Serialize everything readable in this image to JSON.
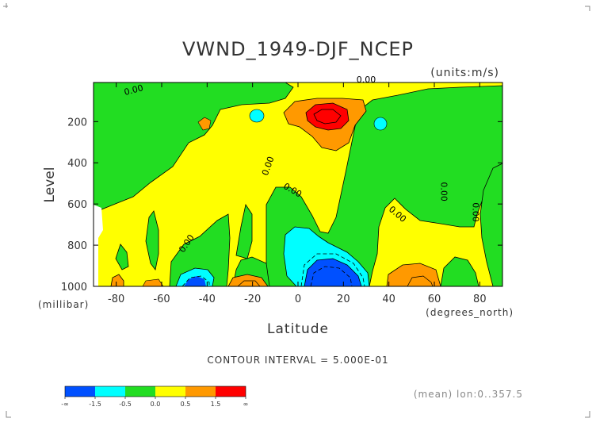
{
  "chart_data": {
    "type": "heatmap",
    "title": "VWND_1949-DJF_NCEP",
    "units": "(units:m/s)",
    "xlabel": "Latitude",
    "xunits": "(degrees_north)",
    "ylabel": "Level",
    "yunits": "(millibar)",
    "xlim": [
      -90,
      90
    ],
    "ylim": [
      1000,
      10
    ],
    "x_ticks": [
      -80,
      -60,
      -40,
      -20,
      0,
      20,
      40,
      60,
      80
    ],
    "y_ticks": [
      200,
      400,
      600,
      800,
      1000
    ],
    "contour_interval_text": "CONTOUR INTERVAL = 5.000E-01",
    "footer_text": "(mean) lon:0..357.5",
    "contour_labels": [
      {
        "text": "0.00",
        "x": -72,
        "y": 60,
        "rot": -15
      },
      {
        "text": "0.00",
        "x": 30,
        "y": 10,
        "rot": 0
      },
      {
        "text": "0.00",
        "x": -12,
        "y": 420,
        "rot": -70
      },
      {
        "text": "0.00",
        "x": -3,
        "y": 545,
        "rot": 30
      },
      {
        "text": "0.00",
        "x": -48,
        "y": 800,
        "rot": -55
      },
      {
        "text": "0.00",
        "x": 43,
        "y": 660,
        "rot": 40
      },
      {
        "text": "0.00",
        "x": 63,
        "y": 540,
        "rot": 90
      },
      {
        "text": "0.00",
        "x": 77,
        "y": 640,
        "rot": 90
      }
    ],
    "colorbar": {
      "colors": [
        "#0050ff",
        "#00ffff",
        "#22dd22",
        "#ffff00",
        "#ff9900",
        "#ff0000"
      ],
      "labels": [
        "-∞",
        "-1.5",
        "-0.5",
        "0.0",
        "0.5",
        "1.5",
        "∞"
      ]
    },
    "color_hex": {
      "green": "#22dd22",
      "yellow": "#ffff00",
      "orange": "#ff9900",
      "red": "#ff0000",
      "cyan": "#00ffff",
      "blue": "#0050ff"
    }
  }
}
